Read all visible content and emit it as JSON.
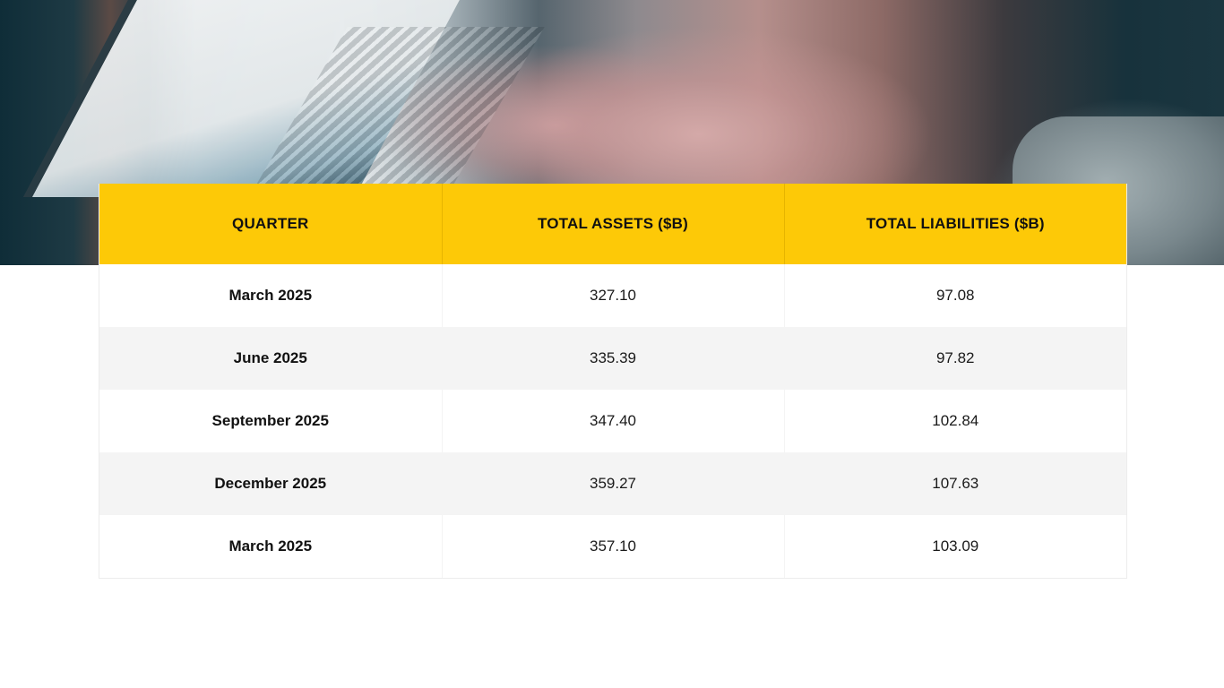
{
  "hero": {
    "image_description": "blurred photo of hands typing on a laptop keyboard"
  },
  "colors": {
    "header_bg": "#fdc907",
    "row_alt_bg": "#f4f4f4",
    "row_bg": "#ffffff",
    "text": "#111111"
  },
  "table": {
    "headers": [
      "QUARTER",
      "TOTAL ASSETS ($B)",
      "TOTAL LIABILITIES ($B)"
    ],
    "rows": [
      {
        "quarter": "March 2025",
        "assets": "327.10",
        "liabilities": "97.08"
      },
      {
        "quarter": "June 2025",
        "assets": "335.39",
        "liabilities": "97.82"
      },
      {
        "quarter": "September 2025",
        "assets": "347.40",
        "liabilities": "102.84"
      },
      {
        "quarter": "December 2025",
        "assets": "359.27",
        "liabilities": "107.63"
      },
      {
        "quarter": "March 2025",
        "assets": "357.10",
        "liabilities": "103.09"
      }
    ]
  }
}
